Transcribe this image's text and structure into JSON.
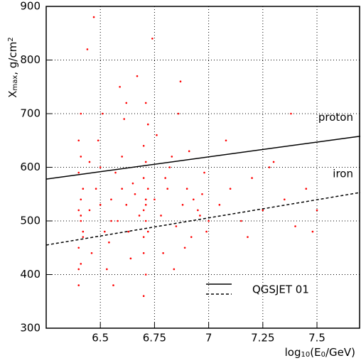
{
  "chart_data": {
    "type": "scatter",
    "x_label_parts": [
      "log",
      "10",
      "(E",
      "0",
      "/GeV)"
    ],
    "y_label_parts": [
      "X",
      "max",
      ", g/cm",
      "2"
    ],
    "xlim": [
      6.25,
      7.7
    ],
    "ylim": [
      300,
      900
    ],
    "xticks": [
      6.5,
      6.75,
      7,
      7.25,
      7.5
    ],
    "yticks": [
      300,
      400,
      500,
      600,
      700,
      800,
      900
    ],
    "grid": true,
    "point_color": "#ff0000",
    "x": [
      6.4,
      6.41,
      6.4,
      6.42,
      6.41,
      6.4,
      6.41,
      6.42,
      6.4,
      6.41,
      6.4,
      6.42,
      6.41,
      6.4,
      6.41,
      6.45,
      6.48,
      6.5,
      6.52,
      6.55,
      6.58,
      6.6,
      6.62,
      6.65,
      6.68,
      6.46,
      6.49,
      6.51,
      6.54,
      6.57,
      6.59,
      6.63,
      6.66,
      6.44,
      6.47,
      6.53,
      6.56,
      6.61,
      6.64,
      6.67,
      6.5,
      6.55,
      6.6,
      6.45,
      6.62,
      6.7,
      6.71,
      6.7,
      6.72,
      6.71,
      6.7,
      6.71,
      6.72,
      6.7,
      6.71,
      6.7,
      6.72,
      6.71,
      6.7,
      6.71,
      6.75,
      6.78,
      6.8,
      6.82,
      6.85,
      6.88,
      6.9,
      6.92,
      6.95,
      6.98,
      7.0,
      6.76,
      6.79,
      6.83,
      6.86,
      6.89,
      6.93,
      6.96,
      6.99,
      6.74,
      6.81,
      6.84,
      6.87,
      6.91,
      6.97,
      7.05,
      7.1,
      7.15,
      7.2,
      7.25,
      7.3,
      7.35,
      7.4,
      7.45,
      7.5,
      7.08,
      7.18,
      7.28,
      7.38,
      7.48
    ],
    "values": [
      380,
      420,
      450,
      480,
      500,
      520,
      540,
      560,
      590,
      620,
      650,
      470,
      510,
      410,
      700,
      520,
      560,
      600,
      480,
      540,
      500,
      620,
      530,
      570,
      510,
      440,
      650,
      700,
      460,
      590,
      750,
      480,
      550,
      820,
      880,
      410,
      380,
      690,
      430,
      770,
      530,
      500,
      560,
      610,
      720,
      360,
      400,
      440,
      480,
      500,
      520,
      540,
      560,
      580,
      610,
      640,
      680,
      720,
      470,
      530,
      540,
      510,
      580,
      600,
      490,
      530,
      560,
      470,
      520,
      590,
      500,
      660,
      440,
      620,
      700,
      450,
      540,
      510,
      480,
      840,
      560,
      410,
      760,
      630,
      550,
      530,
      560,
      500,
      580,
      520,
      610,
      540,
      490,
      560,
      520,
      650,
      470,
      600,
      700,
      480
    ],
    "series": [
      {
        "name": "proton",
        "color": "#000000",
        "dash": false,
        "x": [
          6.25,
          7.7
        ],
        "values": [
          578,
          658
        ]
      },
      {
        "name": "iron",
        "color": "#000000",
        "dash": true,
        "x": [
          6.25,
          7.7
        ],
        "values": [
          455,
          553
        ]
      }
    ],
    "legend_label": "QGSJET 01"
  }
}
